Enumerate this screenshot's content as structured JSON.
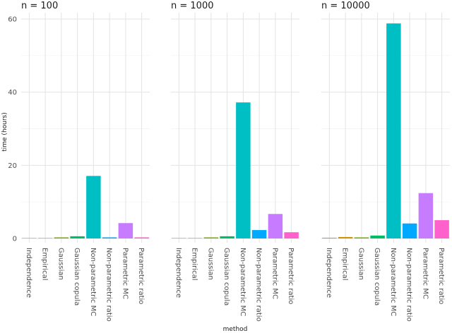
{
  "chart_data": {
    "type": "bar",
    "xlabel": "method",
    "ylabel": "time (hours)",
    "ylim": [
      0,
      61
    ],
    "yticks": [
      0,
      20,
      40,
      60
    ],
    "grid": true,
    "legend": "none",
    "categories": [
      "Independence",
      "Empirical",
      "Gaussian",
      "Gaussian copula",
      "Non-parametric MC",
      "Non-parametric ratio",
      "Parametric MC",
      "Parametric ratio"
    ],
    "colors": [
      "#F8766D",
      "#CD9600",
      "#7CAE00",
      "#00BE67",
      "#00BFC4",
      "#00A9FF",
      "#C77CFF",
      "#FF61CC"
    ],
    "panels": [
      {
        "title": "n = 100",
        "values": [
          0.02,
          0.02,
          0.3,
          0.6,
          17.1,
          0.3,
          4.2,
          0.3
        ]
      },
      {
        "title": "n = 1000",
        "values": [
          0.1,
          0.05,
          0.3,
          0.6,
          37.2,
          2.3,
          6.7,
          1.7
        ]
      },
      {
        "title": "n = 10000",
        "values": [
          0.2,
          0.4,
          0.3,
          0.8,
          58.8,
          4.1,
          12.4,
          5.0
        ]
      }
    ]
  }
}
